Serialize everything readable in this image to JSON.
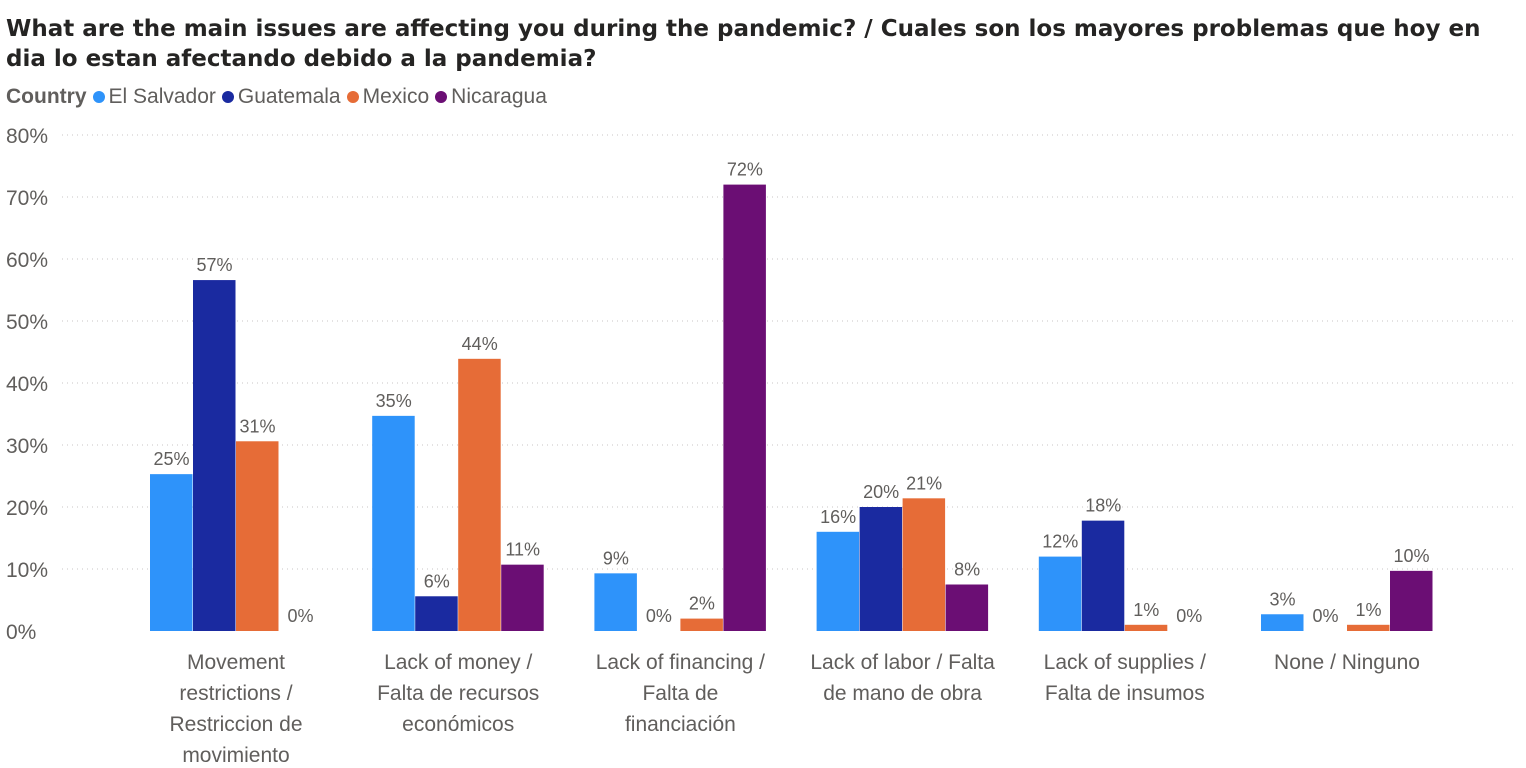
{
  "chart_data": {
    "type": "bar",
    "title": "What are the main issues are affecting you during the pandemic? / Cuales son los mayores problemas que hoy en dia lo estan afectando debido a la pandemia?",
    "legend_title": "Country",
    "legend_position": "top-left",
    "grid": true,
    "ylim": [
      0,
      80
    ],
    "yticks": [
      "0%",
      "10%",
      "20%",
      "30%",
      "40%",
      "50%",
      "60%",
      "70%",
      "80%"
    ],
    "categories": [
      "Movement restrictions / Restriccion de movimiento",
      "Lack of money / Falta de recursos económicos",
      "Lack of financing / Falta de financiación",
      "Lack of labor / Falta de mano de obra",
      "Lack of supplies / Falta de insumos",
      "None / Ninguno"
    ],
    "category_lines": [
      [
        "Movement",
        "restrictions /",
        "Restriccion de",
        "movimiento"
      ],
      [
        "Lack of money /",
        "Falta de recursos",
        "económicos"
      ],
      [
        "Lack of financing /",
        "Falta de",
        "financiación"
      ],
      [
        "Lack of labor / Falta",
        "de mano de obra"
      ],
      [
        "Lack of supplies /",
        "Falta de insumos"
      ],
      [
        "None / Ninguno"
      ]
    ],
    "series": [
      {
        "name": "El Salvador",
        "color": "#2e93fa",
        "values": [
          25.3,
          34.7,
          9.3,
          16.0,
          12.0,
          2.7
        ],
        "labels": [
          "25%",
          "35%",
          "9%",
          "16%",
          "12%",
          "3%"
        ]
      },
      {
        "name": "Guatemala",
        "color": "#1a2aa0",
        "values": [
          56.6,
          5.6,
          0,
          20.0,
          17.8,
          0
        ],
        "labels": [
          "57%",
          "6%",
          "0%",
          "20%",
          "18%",
          "0%"
        ]
      },
      {
        "name": "Mexico",
        "color": "#e66c37",
        "values": [
          30.6,
          43.9,
          2.0,
          21.4,
          1.0,
          1.0
        ],
        "labels": [
          "31%",
          "44%",
          "2%",
          "21%",
          "1%",
          "1%"
        ]
      },
      {
        "name": "Nicaragua",
        "color": "#6b0e74",
        "values": [
          0,
          10.7,
          72.0,
          7.5,
          0,
          9.7
        ],
        "labels": [
          "0%",
          "11%",
          "72%",
          "8%",
          "0%",
          "10%"
        ]
      }
    ]
  }
}
